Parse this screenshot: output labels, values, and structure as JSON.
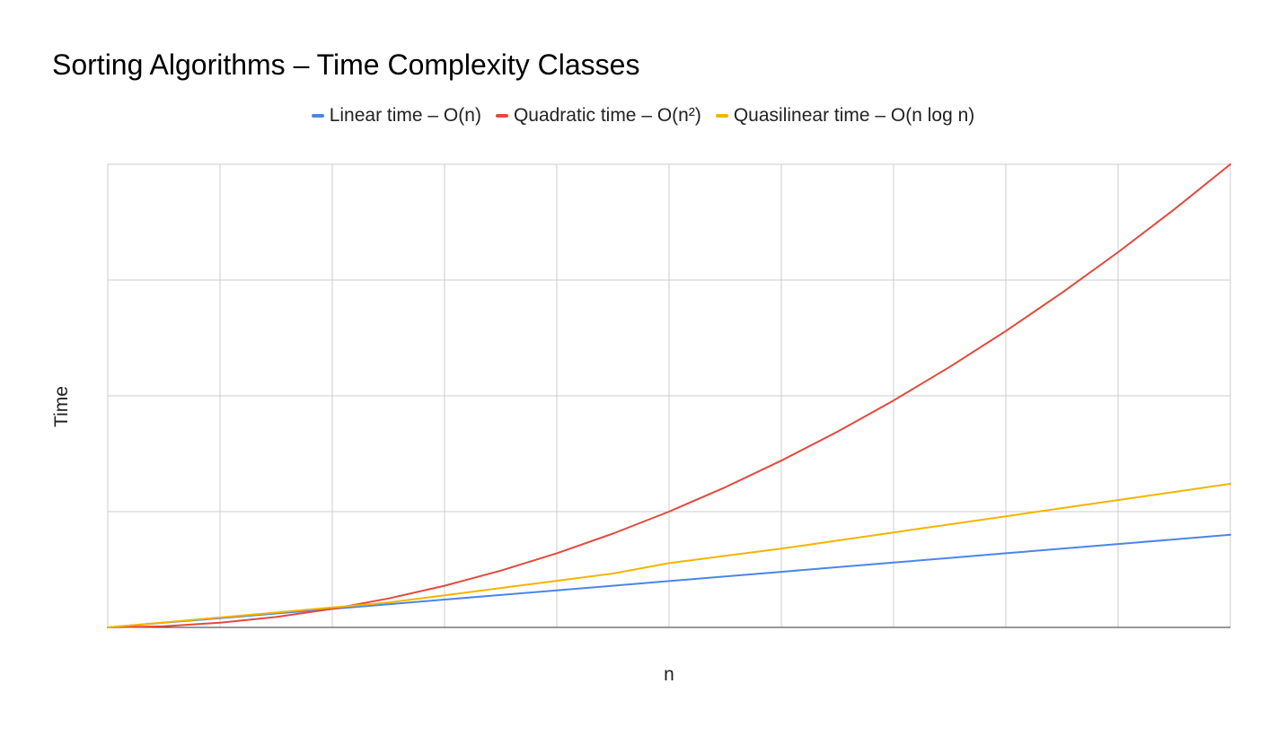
{
  "chart_data": {
    "type": "line",
    "title": "Sorting Algorithms – Time Complexity Classes",
    "xlabel": "n",
    "ylabel": "Time",
    "x": [
      0,
      1,
      2,
      3,
      4,
      5,
      6,
      7,
      8,
      9,
      10,
      11,
      12,
      13,
      14,
      15,
      16,
      17,
      18,
      19,
      20
    ],
    "xlim": [
      0,
      20
    ],
    "ylim": [
      0,
      400
    ],
    "grid": true,
    "legend_position": "top",
    "series": [
      {
        "name": "Linear time – O(n)",
        "color": "#4a86e8",
        "values": [
          0,
          4,
          8,
          12,
          16,
          20,
          24,
          28,
          32,
          36,
          40,
          44,
          48,
          52,
          56,
          60,
          64,
          68,
          72,
          76,
          80
        ]
      },
      {
        "name": "Quadratic time – O(n²)",
        "color": "#e4493c",
        "values": [
          0,
          1,
          4,
          9,
          16,
          25,
          36,
          49,
          64,
          81,
          100,
          121,
          144,
          169,
          196,
          225,
          256,
          289,
          324,
          361,
          400
        ]
      },
      {
        "name": "Quasilinear time – O(n log n)",
        "color": "#f4b400",
        "values": [
          0,
          4.3,
          8.6,
          12.9,
          17.2,
          21.5,
          27.7,
          34,
          40.2,
          46.5,
          55.5,
          61.8,
          68,
          75,
          82,
          89,
          96,
          103,
          110,
          117,
          124
        ]
      }
    ]
  }
}
